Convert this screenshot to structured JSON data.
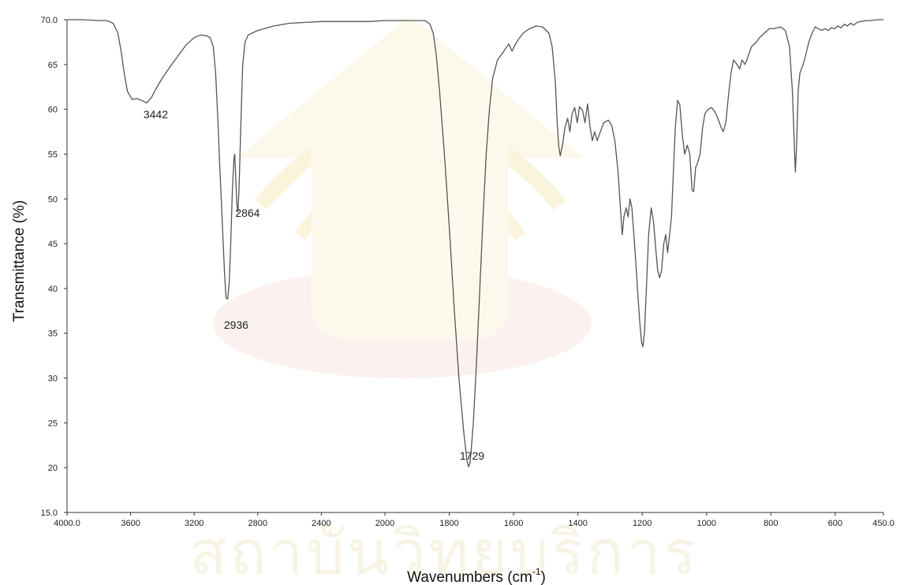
{
  "chart_data": {
    "type": "line",
    "title": "",
    "xlabel": "Wavenumbers (cm",
    "xlabel_sup": "-1",
    "xlabel_tail": ")",
    "ylabel": "Transmittance (%)",
    "xlim": [
      4000,
      450
    ],
    "ylim": [
      15,
      70
    ],
    "x_reversed": true,
    "grid": false,
    "x_ticks": [
      {
        "value": 4000,
        "label": "4000.0"
      },
      {
        "value": 3600,
        "label": "3600"
      },
      {
        "value": 3200,
        "label": "3200"
      },
      {
        "value": 2800,
        "label": "2800"
      },
      {
        "value": 2400,
        "label": "2400"
      },
      {
        "value": 2000,
        "label": "2000"
      },
      {
        "value": 1800,
        "label": "1800"
      },
      {
        "value": 1600,
        "label": "1600"
      },
      {
        "value": 1400,
        "label": "1400"
      },
      {
        "value": 1200,
        "label": "1200"
      },
      {
        "value": 1000,
        "label": "1000"
      },
      {
        "value": 800,
        "label": "800"
      },
      {
        "value": 600,
        "label": "600"
      },
      {
        "value": 450,
        "label": "450.0"
      }
    ],
    "y_ticks": [
      {
        "value": 70,
        "label": "70.0"
      },
      {
        "value": 65,
        "label": "65"
      },
      {
        "value": 60,
        "label": "60"
      },
      {
        "value": 55,
        "label": "55"
      },
      {
        "value": 50,
        "label": "50"
      },
      {
        "value": 45,
        "label": "45"
      },
      {
        "value": 40,
        "label": "40"
      },
      {
        "value": 35,
        "label": "35"
      },
      {
        "value": 30,
        "label": "30"
      },
      {
        "value": 25,
        "label": "25"
      },
      {
        "value": 20,
        "label": "20"
      },
      {
        "value": 15,
        "label": "15.0"
      }
    ],
    "annotations": [
      {
        "text": "3442",
        "x": 3442,
        "y": 59.0
      },
      {
        "text": "2936",
        "x": 2936,
        "y": 35.5
      },
      {
        "text": "2864",
        "x": 2864,
        "y": 48.0
      },
      {
        "text": "1729",
        "x": 1729,
        "y": 20.9
      }
    ],
    "series": [
      {
        "color": "#555555",
        "points": [
          [
            4000,
            70.0
          ],
          [
            3900,
            70.0
          ],
          [
            3800,
            69.9
          ],
          [
            3750,
            69.9
          ],
          [
            3710,
            69.6
          ],
          [
            3680,
            68.5
          ],
          [
            3660,
            66.5
          ],
          [
            3640,
            64.0
          ],
          [
            3620,
            62.0
          ],
          [
            3590,
            61.1
          ],
          [
            3560,
            61.2
          ],
          [
            3530,
            61.0
          ],
          [
            3500,
            60.7
          ],
          [
            3470,
            61.3
          ],
          [
            3440,
            62.3
          ],
          [
            3400,
            63.5
          ],
          [
            3350,
            64.8
          ],
          [
            3300,
            66.0
          ],
          [
            3250,
            67.2
          ],
          [
            3200,
            68.0
          ],
          [
            3160,
            68.3
          ],
          [
            3120,
            68.2
          ],
          [
            3100,
            68.0
          ],
          [
            3080,
            67.0
          ],
          [
            3065,
            64.0
          ],
          [
            3050,
            58.5
          ],
          [
            3040,
            54.0
          ],
          [
            3030,
            50.0
          ],
          [
            3020,
            46.0
          ],
          [
            3010,
            42.0
          ],
          [
            3000,
            39.0
          ],
          [
            2990,
            38.8
          ],
          [
            2980,
            40.5
          ],
          [
            2970,
            45.0
          ],
          [
            2960,
            51.0
          ],
          [
            2950,
            54.5
          ],
          [
            2945,
            55.0
          ],
          [
            2940,
            53.0
          ],
          [
            2932,
            49.5
          ],
          [
            2925,
            48.5
          ],
          [
            2918,
            51.0
          ],
          [
            2910,
            56.0
          ],
          [
            2900,
            62.0
          ],
          [
            2895,
            65.0
          ],
          [
            2880,
            67.5
          ],
          [
            2860,
            68.3
          ],
          [
            2800,
            68.8
          ],
          [
            2700,
            69.3
          ],
          [
            2600,
            69.6
          ],
          [
            2500,
            69.7
          ],
          [
            2400,
            69.8
          ],
          [
            2300,
            69.8
          ],
          [
            2200,
            69.8
          ],
          [
            2100,
            69.8
          ],
          [
            2000,
            69.9
          ],
          [
            1950,
            69.9
          ],
          [
            1900,
            69.9
          ],
          [
            1875,
            69.9
          ],
          [
            1860,
            69.5
          ],
          [
            1850,
            68.5
          ],
          [
            1840,
            66.0
          ],
          [
            1830,
            62.0
          ],
          [
            1815,
            55.0
          ],
          [
            1800,
            47.0
          ],
          [
            1785,
            38.0
          ],
          [
            1770,
            30.0
          ],
          [
            1755,
            24.0
          ],
          [
            1745,
            20.8
          ],
          [
            1740,
            20.1
          ],
          [
            1735,
            20.6
          ],
          [
            1725,
            25.0
          ],
          [
            1715,
            32.0
          ],
          [
            1705,
            40.0
          ],
          [
            1695,
            48.0
          ],
          [
            1685,
            55.0
          ],
          [
            1675,
            60.0
          ],
          [
            1665,
            63.5
          ],
          [
            1650,
            65.5
          ],
          [
            1630,
            66.5
          ],
          [
            1615,
            67.3
          ],
          [
            1605,
            66.5
          ],
          [
            1595,
            67.2
          ],
          [
            1585,
            67.8
          ],
          [
            1570,
            68.5
          ],
          [
            1550,
            69.0
          ],
          [
            1530,
            69.3
          ],
          [
            1510,
            69.2
          ],
          [
            1490,
            68.5
          ],
          [
            1480,
            67.0
          ],
          [
            1470,
            63.0
          ],
          [
            1465,
            59.0
          ],
          [
            1460,
            56.0
          ],
          [
            1455,
            54.8
          ],
          [
            1448,
            56.0
          ],
          [
            1440,
            58.0
          ],
          [
            1432,
            59.0
          ],
          [
            1425,
            57.5
          ],
          [
            1418,
            59.5
          ],
          [
            1410,
            60.2
          ],
          [
            1402,
            58.5
          ],
          [
            1395,
            60.3
          ],
          [
            1385,
            59.8
          ],
          [
            1378,
            58.5
          ],
          [
            1370,
            60.6
          ],
          [
            1362,
            58.0
          ],
          [
            1355,
            56.5
          ],
          [
            1348,
            57.5
          ],
          [
            1340,
            56.5
          ],
          [
            1335,
            57.0
          ],
          [
            1320,
            58.5
          ],
          [
            1305,
            58.8
          ],
          [
            1295,
            58.2
          ],
          [
            1285,
            56.5
          ],
          [
            1275,
            53.0
          ],
          [
            1268,
            49.0
          ],
          [
            1262,
            46.0
          ],
          [
            1257,
            48.0
          ],
          [
            1250,
            49.0
          ],
          [
            1244,
            48.0
          ],
          [
            1238,
            50.0
          ],
          [
            1232,
            49.0
          ],
          [
            1226,
            46.0
          ],
          [
            1220,
            43.0
          ],
          [
            1213,
            39.0
          ],
          [
            1207,
            36.0
          ],
          [
            1202,
            34.0
          ],
          [
            1198,
            33.5
          ],
          [
            1193,
            35.0
          ],
          [
            1187,
            40.0
          ],
          [
            1180,
            46.0
          ],
          [
            1172,
            49.0
          ],
          [
            1165,
            47.5
          ],
          [
            1158,
            44.5
          ],
          [
            1152,
            42.0
          ],
          [
            1146,
            41.2
          ],
          [
            1140,
            42.0
          ],
          [
            1133,
            45.0
          ],
          [
            1127,
            46.0
          ],
          [
            1121,
            44.0
          ],
          [
            1115,
            46.0
          ],
          [
            1109,
            48.0
          ],
          [
            1103,
            53.0
          ],
          [
            1097,
            58.0
          ],
          [
            1090,
            61.0
          ],
          [
            1083,
            60.5
          ],
          [
            1075,
            57.0
          ],
          [
            1068,
            55.0
          ],
          [
            1060,
            56.0
          ],
          [
            1052,
            55.0
          ],
          [
            1045,
            51.0
          ],
          [
            1040,
            50.8
          ],
          [
            1034,
            53.5
          ],
          [
            1028,
            54.0
          ],
          [
            1020,
            55.0
          ],
          [
            1012,
            58.0
          ],
          [
            1005,
            59.5
          ],
          [
            995,
            60.0
          ],
          [
            985,
            60.2
          ],
          [
            975,
            59.8
          ],
          [
            965,
            59.0
          ],
          [
            955,
            58.0
          ],
          [
            948,
            57.5
          ],
          [
            940,
            58.5
          ],
          [
            932,
            61.5
          ],
          [
            924,
            64.0
          ],
          [
            916,
            65.5
          ],
          [
            905,
            65.0
          ],
          [
            897,
            64.5
          ],
          [
            890,
            65.5
          ],
          [
            880,
            65.0
          ],
          [
            870,
            66.0
          ],
          [
            860,
            67.0
          ],
          [
            845,
            67.5
          ],
          [
            835,
            68.0
          ],
          [
            820,
            68.5
          ],
          [
            805,
            69.0
          ],
          [
            790,
            69.0
          ],
          [
            770,
            69.2
          ],
          [
            755,
            68.8
          ],
          [
            742,
            67.0
          ],
          [
            733,
            62.0
          ],
          [
            728,
            57.0
          ],
          [
            724,
            53.0
          ],
          [
            720,
            56.0
          ],
          [
            715,
            62.0
          ],
          [
            710,
            64.0
          ],
          [
            700,
            65.0
          ],
          [
            692,
            66.0
          ],
          [
            682,
            67.5
          ],
          [
            672,
            68.5
          ],
          [
            662,
            69.2
          ],
          [
            652,
            69.0
          ],
          [
            642,
            68.8
          ],
          [
            632,
            69.0
          ],
          [
            622,
            68.8
          ],
          [
            612,
            69.1
          ],
          [
            602,
            69.0
          ],
          [
            592,
            69.3
          ],
          [
            582,
            69.1
          ],
          [
            572,
            69.5
          ],
          [
            562,
            69.3
          ],
          [
            552,
            69.6
          ],
          [
            542,
            69.4
          ],
          [
            532,
            69.7
          ],
          [
            520,
            69.8
          ],
          [
            505,
            69.9
          ],
          [
            490,
            69.9
          ],
          [
            470,
            70.0
          ],
          [
            450,
            70.0
          ]
        ]
      }
    ]
  }
}
